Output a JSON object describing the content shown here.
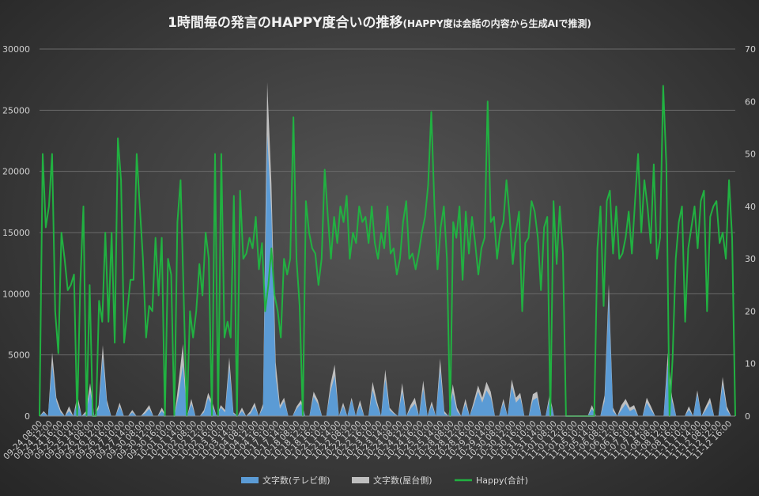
{
  "chart_data": {
    "type": "area+line",
    "title": "1時間毎の発言のHAPPY度合いの推移",
    "subtitle": "(HAPPY度は会話の内容から生成AIで推測)",
    "y_left": {
      "min": 0,
      "max": 30000,
      "ticks": [
        "0",
        "5000",
        "10000",
        "15000",
        "20000",
        "25000",
        "30000"
      ]
    },
    "y_right": {
      "min": 0,
      "max": 70,
      "ticks": [
        "0",
        "10",
        "20",
        "30",
        "40",
        "50",
        "60",
        "70"
      ]
    },
    "x_tick_labels": [
      "09-24 08:00",
      "09-24 12:00",
      "09-24 16:00",
      "09-25 10:00",
      "09-25 14:00",
      "09-26 08:00",
      "09-26 12:00",
      "09-26 16:00",
      "09-27 10:00",
      "09-27 14:00",
      "09-30 08:00",
      "09-30 12:00",
      "09-30 16:00",
      "10-01 10:00",
      "10-01 14:00",
      "10-02 08:00",
      "10-02 12:00",
      "10-02 16:00",
      "10-03 10:00",
      "10-03 14:00",
      "10-04 08:00",
      "10-04 12:00",
      "10-04 16:00",
      "10-17 10:00",
      "10-17 14:00",
      "10-18 08:00",
      "10-18 12:00",
      "10-18 16:00",
      "10-21 10:00",
      "10-21 14:00",
      "10-22 08:00",
      "10-22 12:00",
      "10-22 16:00",
      "10-23 10:00",
      "10-23 14:00",
      "10-24 08:00",
      "10-24 12:00",
      "10-24 16:00",
      "10-25 10:00",
      "10-25 14:00",
      "10-28 08:00",
      "10-28 12:00",
      "10-28 16:00",
      "10-29 10:00",
      "10-29 14:00",
      "10-30 08:00",
      "10-30 12:00",
      "10-30 16:00",
      "10-31 10:00",
      "10-31 14:00",
      "11-01 08:00",
      "11-01 12:00",
      "11-01 16:00",
      "11-05 10:00",
      "11-05 14:00",
      "11-06 08:00",
      "11-06 12:00",
      "11-06 16:00",
      "11-07 10:00",
      "11-07 14:00",
      "11-08 08:00",
      "11-08 12:00",
      "11-08 16:00",
      "11-11 10:00",
      "11-11 14:00",
      "11-12 08:00",
      "11-12 12:00",
      "11-12 16:00"
    ],
    "series": [
      {
        "name": "文字数(テレビ側)",
        "axis": "left",
        "style": "area",
        "color": "#5b9bd5",
        "values": [
          0,
          300,
          0,
          4200,
          1200,
          300,
          0,
          400,
          0,
          1200,
          0,
          200,
          2000,
          0,
          600,
          4800,
          1000,
          0,
          0,
          800,
          0,
          0,
          300,
          0,
          0,
          200,
          600,
          0,
          0,
          400,
          0,
          0,
          0,
          1700,
          4200,
          0,
          1000,
          0,
          0,
          300,
          1500,
          800,
          0,
          700,
          300,
          4000,
          200,
          0,
          400,
          0,
          200,
          800,
          0,
          700,
          23000,
          16500,
          3200,
          600,
          1200,
          0,
          0,
          600,
          1000,
          0,
          0,
          1600,
          1000,
          0,
          0,
          2000,
          3300,
          0,
          800,
          0,
          1300,
          0,
          900,
          0,
          0,
          2100,
          900,
          0,
          3000,
          500,
          200,
          0,
          2000,
          0,
          600,
          1000,
          0,
          2200,
          0,
          900,
          0,
          3800,
          200,
          0,
          1900,
          400,
          0,
          1000,
          0,
          900,
          2000,
          1100,
          2100,
          1500,
          0,
          0,
          1100,
          0,
          2400,
          1100,
          1500,
          0,
          0,
          1300,
          1500,
          0,
          0,
          1400,
          0,
          0,
          0,
          0,
          0,
          0,
          0,
          0,
          0,
          600,
          0,
          0,
          1200,
          9800,
          400,
          0,
          500,
          1000,
          400,
          600,
          0,
          0,
          1100,
          500,
          0,
          0,
          0,
          4200,
          1200,
          0,
          0,
          0,
          500,
          0,
          1800,
          0,
          500,
          1100,
          0,
          0,
          2600,
          500,
          0,
          0
        ],
        "values_total": [
          0,
          400,
          0,
          5200,
          1500,
          500,
          0,
          800,
          0,
          1700,
          0,
          400,
          2700,
          0,
          900,
          5800,
          1300,
          0,
          0,
          1100,
          0,
          0,
          500,
          0,
          0,
          400,
          900,
          0,
          0,
          700,
          0,
          0,
          0,
          2800,
          5900,
          0,
          1400,
          0,
          0,
          500,
          1900,
          1100,
          0,
          900,
          500,
          4800,
          300,
          0,
          700,
          0,
          400,
          1100,
          0,
          1000,
          27300,
          19000,
          4400,
          900,
          1500,
          0,
          0,
          800,
          1300,
          0,
          0,
          2000,
          1300,
          0,
          0,
          2600,
          4200,
          0,
          1100,
          0,
          1500,
          0,
          1300,
          0,
          0,
          2800,
          1200,
          0,
          3800,
          700,
          300,
          0,
          2700,
          0,
          900,
          1500,
          0,
          2900,
          0,
          1200,
          0,
          4700,
          400,
          0,
          2600,
          700,
          0,
          1400,
          0,
          1200,
          2500,
          1500,
          2800,
          2000,
          0,
          0,
          1400,
          0,
          3000,
          1500,
          1900,
          0,
          0,
          1800,
          2000,
          0,
          0,
          1800,
          0,
          0,
          0,
          0,
          0,
          0,
          0,
          0,
          0,
          900,
          0,
          0,
          1700,
          10800,
          700,
          0,
          900,
          1400,
          700,
          900,
          0,
          0,
          1500,
          800,
          0,
          0,
          0,
          5200,
          1600,
          0,
          0,
          0,
          800,
          0,
          2100,
          0,
          800,
          1500,
          0,
          0,
          3200,
          800,
          0,
          0
        ]
      },
      {
        "name": "文字数(屋台側)",
        "axis": "left",
        "style": "area",
        "color": "#bfbfbf"
      },
      {
        "name": "Happy(合計)",
        "axis": "right",
        "style": "line",
        "color": "#21b141",
        "values": [
          0,
          50,
          36,
          40,
          50,
          20,
          12,
          35,
          30,
          24,
          25,
          27,
          0,
          25,
          40,
          0,
          25,
          0,
          0,
          22,
          18,
          35,
          18,
          35,
          14,
          53,
          45,
          14,
          20,
          26,
          26,
          50,
          40,
          30,
          15,
          21,
          20,
          34,
          23,
          34,
          0,
          30,
          27,
          0,
          37,
          45,
          23,
          0,
          20,
          15,
          20,
          29,
          23,
          35,
          30,
          0,
          50,
          0,
          50,
          15,
          18,
          15,
          42,
          0,
          43,
          30,
          31,
          34,
          32,
          38,
          28,
          33,
          20,
          25,
          32,
          23,
          20,
          15,
          30,
          27,
          30,
          57,
          30,
          21,
          0,
          41,
          35,
          32,
          31,
          25,
          30,
          47,
          38,
          30,
          38,
          33,
          40,
          37,
          42,
          30,
          35,
          33,
          40,
          37,
          38,
          33,
          40,
          33,
          30,
          35,
          32,
          40,
          31,
          32,
          27,
          30,
          37,
          41,
          30,
          31,
          28,
          31,
          35,
          38,
          44,
          58,
          40,
          28,
          36,
          40,
          30,
          0,
          37,
          34,
          40,
          26,
          39,
          31,
          38,
          33,
          27,
          32,
          34,
          60,
          37,
          38,
          30,
          35,
          37,
          45,
          38,
          29,
          35,
          39,
          20,
          33,
          34,
          41,
          39,
          34,
          24,
          36,
          38,
          0,
          41,
          29,
          40,
          31,
          0,
          0,
          0,
          0,
          0,
          0,
          0,
          0,
          0,
          0,
          32,
          40,
          21,
          41,
          43,
          31,
          40,
          30,
          31,
          34,
          39,
          31,
          41,
          50,
          35,
          45,
          40,
          33,
          48,
          30,
          34,
          63,
          48,
          0,
          11,
          30,
          37,
          40,
          18,
          32,
          36,
          40,
          32,
          41,
          43,
          20,
          38,
          40,
          41,
          33,
          35,
          30,
          45,
          34,
          0
        ]
      }
    ],
    "legend": [
      "文字数(テレビ側)",
      "文字数(屋台側)",
      "Happy(合計)"
    ],
    "legend_position": "bottom",
    "grid": "horizontal"
  }
}
